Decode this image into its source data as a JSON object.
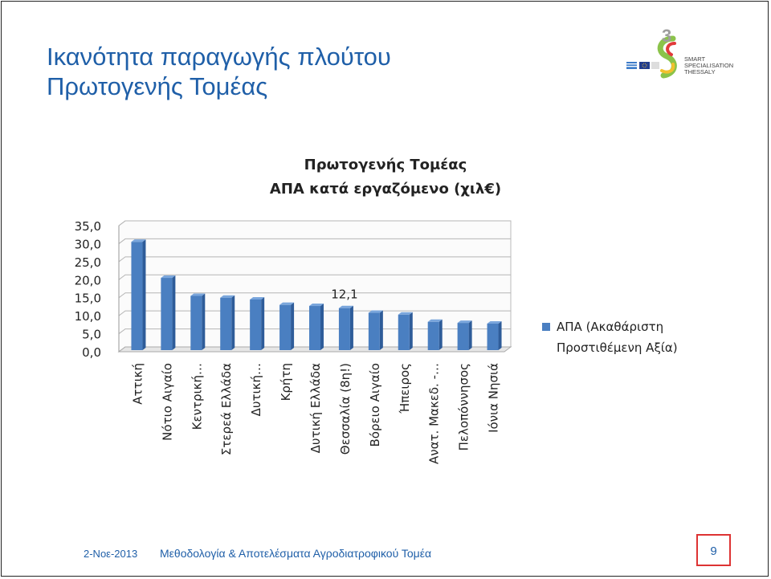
{
  "slide": {
    "title_line1": "Ικανότητα παραγωγής πλούτου",
    "title_line2": "Πρωτογενής Τομέας"
  },
  "logo": {
    "mark": "3",
    "line1": "SMART",
    "line2": "SPECIALISATION",
    "line3": "THESSALY",
    "colors": {
      "blue": "#1f5fa8",
      "red": "#e23b3b",
      "green": "#8bc34a",
      "yellow": "#f2c12e"
    }
  },
  "footer": {
    "date": "2-Νοε-2013",
    "text": "Μεθοδολογία & Αποτελέσματα Αγροδιατροφικού Τομέα",
    "page_number": "9"
  },
  "chart_data": {
    "type": "bar",
    "title": "Πρωτογενής Τομέας",
    "subtitle": "ΑΠΑ κατά εργαζόμενο (χιλ€)",
    "categories": [
      "Αττική",
      "Νότιο Αιγαίο",
      "Κεντρική…",
      "Στερεά Ελλάδα",
      "Δυτική…",
      "Κρήτη",
      "Δυτική Ελλάδα",
      "Θεσσαλία (8η!)",
      "Βόρειο Αιγαίο",
      "Ήπειρος",
      "Ανατ. Μακεδ. -…",
      "Πελοπόννησος",
      "Ιόνια Νησιά"
    ],
    "series": [
      {
        "name": "ΑΠΑ (Ακαθάριστη Προστιθέμενη Αξία)",
        "values": [
          30.5,
          20.5,
          15.5,
          15.0,
          14.5,
          13.0,
          12.7,
          12.1,
          10.8,
          10.3,
          8.3,
          8.0,
          7.8
        ]
      }
    ],
    "legend_line1": "ΑΠΑ (Ακαθάριστη",
    "legend_line2": "Προστιθέμενη Αξία)",
    "data_label": {
      "index": 7,
      "text": "12,1"
    },
    "yticks": [
      "0,0",
      "5,0",
      "10,0",
      "15,0",
      "20,0",
      "25,0",
      "30,0",
      "35,0"
    ],
    "ylim": [
      0,
      35
    ],
    "grid": true,
    "legend_position": "right",
    "bar_color": "#4a7fc1"
  }
}
